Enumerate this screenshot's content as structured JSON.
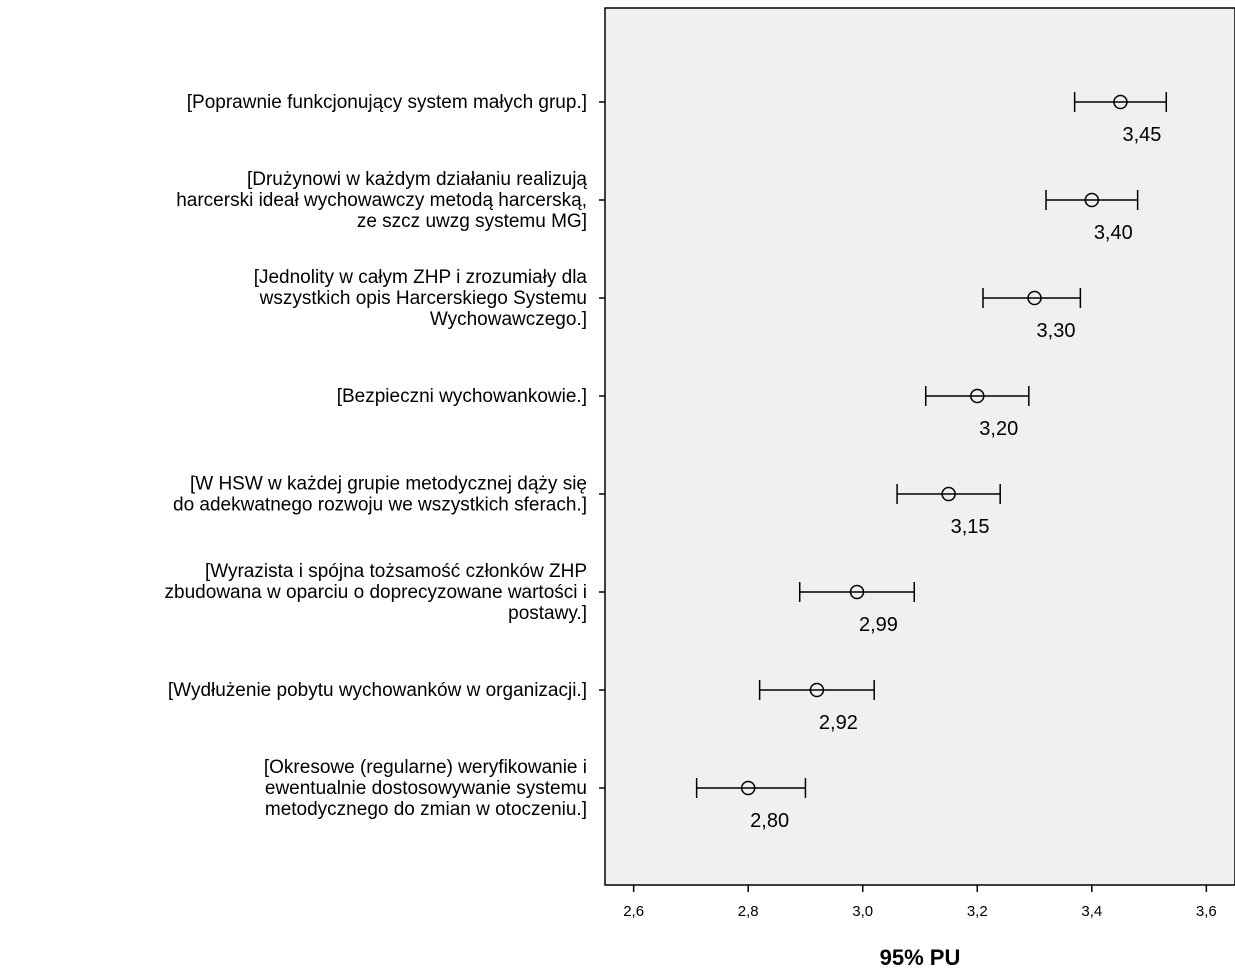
{
  "chart_data": {
    "type": "errorbar",
    "title": "",
    "xlabel": "95% PU",
    "ylabel": "",
    "xlim": [
      2.55,
      3.65
    ],
    "x_ticks": [
      "2,6",
      "2,8",
      "3,0",
      "3,2",
      "3,4",
      "3,6"
    ],
    "x_tick_values": [
      2.6,
      2.8,
      3.0,
      3.2,
      3.4,
      3.6
    ],
    "grid": false,
    "plot_background": "#f0f0f0",
    "items": [
      {
        "category": [
          "[Poprawnie funkcjonujący system małych grup.]"
        ],
        "mean": 3.45,
        "low": 3.37,
        "high": 3.53,
        "value_label": "3,45"
      },
      {
        "category": [
          "[Drużynowi w każdym działaniu realizują",
          "harcerski ideał wychowawczy metodą harcerską,",
          "ze szcz uwzg systemu MG]"
        ],
        "mean": 3.4,
        "low": 3.32,
        "high": 3.48,
        "value_label": "3,40"
      },
      {
        "category": [
          "[Jednolity w całym ZHP i zrozumiały dla",
          "wszystkich opis Harcerskiego Systemu",
          "Wychowawczego.]"
        ],
        "mean": 3.3,
        "low": 3.21,
        "high": 3.38,
        "value_label": "3,30"
      },
      {
        "category": [
          "[Bezpieczni wychowankowie.]"
        ],
        "mean": 3.2,
        "low": 3.11,
        "high": 3.29,
        "value_label": "3,20"
      },
      {
        "category": [
          "[W HSW w każdej grupie metodycznej dąży się",
          "do adekwatnego rozwoju we wszystkich sferach.]"
        ],
        "mean": 3.15,
        "low": 3.06,
        "high": 3.24,
        "value_label": "3,15"
      },
      {
        "category": [
          "[Wyrazista i spójna tożsamość członków ZHP",
          "zbudowana w oparciu o doprecyzowane wartości i",
          "postawy.]"
        ],
        "mean": 2.99,
        "low": 2.89,
        "high": 3.09,
        "value_label": "2,99"
      },
      {
        "category": [
          "[Wydłużenie pobytu wychowanków w organizacji.]"
        ],
        "mean": 2.92,
        "low": 2.82,
        "high": 3.02,
        "value_label": "2,92"
      },
      {
        "category": [
          "[Okresowe (regularne) weryfikowanie i",
          "ewentualnie dostosowywanie systemu",
          "metodycznego do zmian w otoczeniu.]"
        ],
        "mean": 2.8,
        "low": 2.71,
        "high": 2.9,
        "value_label": "2,80"
      }
    ]
  }
}
